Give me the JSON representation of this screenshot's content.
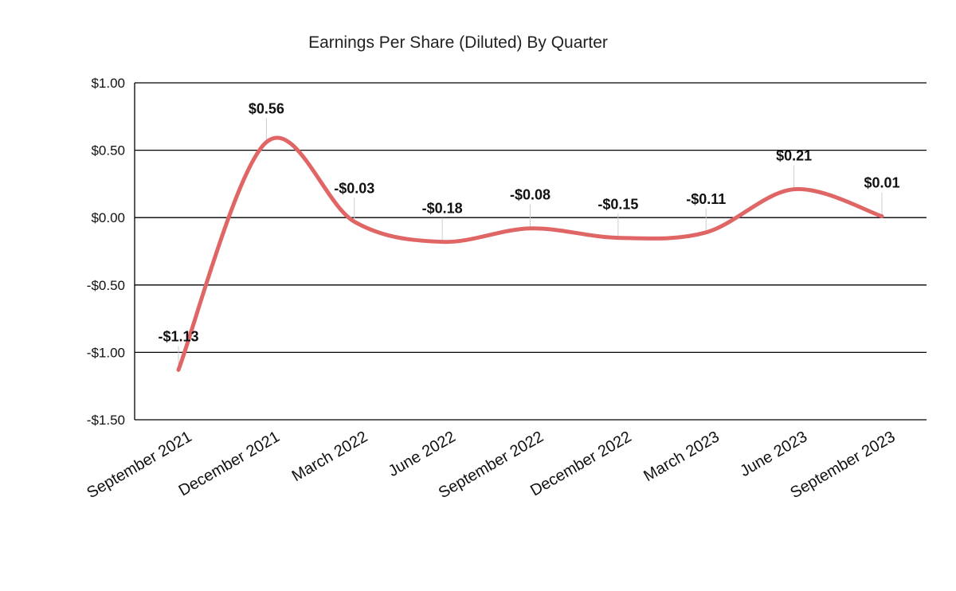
{
  "chart_data": {
    "type": "line",
    "title": "Earnings Per Share (Diluted) By Quarter",
    "xlabel": "",
    "ylabel": "",
    "categories": [
      "September 2021",
      "December 2021",
      "March 2022",
      "June 2022",
      "September 2022",
      "December 2022",
      "March 2023",
      "June 2023",
      "September 2023"
    ],
    "series": [
      {
        "values": [
          -1.13,
          0.56,
          -0.03,
          -0.18,
          -0.08,
          -0.15,
          -0.11,
          0.21,
          0.01
        ],
        "data_labels": [
          "-$1.13",
          "$0.56",
          "-$0.03",
          "-$0.18",
          "-$0.08",
          "-$0.15",
          "-$0.11",
          "$0.21",
          "$0.01"
        ],
        "color": "#e06666"
      }
    ],
    "ylim": [
      -1.5,
      1.0
    ],
    "y_ticks": [
      1.0,
      0.5,
      0.0,
      -0.5,
      -1.0,
      -1.5
    ],
    "y_tick_labels": [
      "$1.00",
      "$0.50",
      "$0.00",
      "-$0.50",
      "-$1.00",
      "-$1.50"
    ],
    "grid": true,
    "legend": "none",
    "smooth": true,
    "colors": {
      "line": "#e06666",
      "grid": "#000000",
      "leader": "#cccccc"
    }
  }
}
